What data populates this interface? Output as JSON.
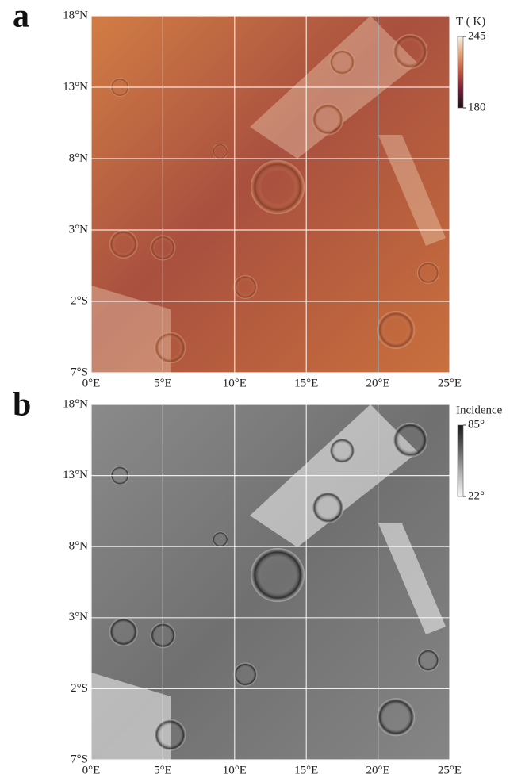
{
  "chart_data": [
    {
      "type": "map",
      "panel_label": "a",
      "xlim": [
        0,
        25
      ],
      "ylim": [
        -7,
        18
      ],
      "xticks": [
        {
          "value": 0,
          "label": "0°E"
        },
        {
          "value": 5,
          "label": "5°E"
        },
        {
          "value": 10,
          "label": "10°E"
        },
        {
          "value": 15,
          "label": "15°E"
        },
        {
          "value": 20,
          "label": "20°E"
        },
        {
          "value": 25,
          "label": "25°E"
        }
      ],
      "yticks": [
        {
          "value": 18,
          "label": "18°N"
        },
        {
          "value": 13,
          "label": "13°N"
        },
        {
          "value": 8,
          "label": "8°N"
        },
        {
          "value": 3,
          "label": "3°N"
        },
        {
          "value": -2,
          "label": "2°S"
        },
        {
          "value": -7,
          "label": "7°S"
        }
      ],
      "grid": true,
      "colorbar": {
        "title": "T ( K)",
        "lim": [
          180,
          245
        ],
        "ticks": [
          245,
          180
        ],
        "colormap": [
          "#1b1416",
          "#6e1e38",
          "#c0543e",
          "#e6a070",
          "#f6f1ea"
        ]
      }
    },
    {
      "type": "map",
      "panel_label": "b",
      "xlim": [
        0,
        25
      ],
      "ylim": [
        -7,
        18
      ],
      "xticks": [
        {
          "value": 0,
          "label": "0°E"
        },
        {
          "value": 5,
          "label": "5°E"
        },
        {
          "value": 10,
          "label": "10°E"
        },
        {
          "value": 15,
          "label": "15°E"
        },
        {
          "value": 20,
          "label": "20°E"
        },
        {
          "value": 25,
          "label": "25°E"
        }
      ],
      "yticks": [
        {
          "value": 18,
          "label": "18°N"
        },
        {
          "value": 13,
          "label": "13°N"
        },
        {
          "value": 8,
          "label": "8°N"
        },
        {
          "value": 3,
          "label": "3°N"
        },
        {
          "value": -2,
          "label": "2°S"
        },
        {
          "value": -7,
          "label": "7°S"
        }
      ],
      "grid": true,
      "colorbar": {
        "title": "Incidence",
        "lim": [
          22,
          85
        ],
        "ticks": [
          {
            "value": 85,
            "label": "85°"
          },
          {
            "value": 22,
            "label": "22°"
          }
        ],
        "colormap": [
          "#f8f8f8",
          "#b0b0b0",
          "#606060",
          "#1a1a1a"
        ]
      }
    }
  ]
}
